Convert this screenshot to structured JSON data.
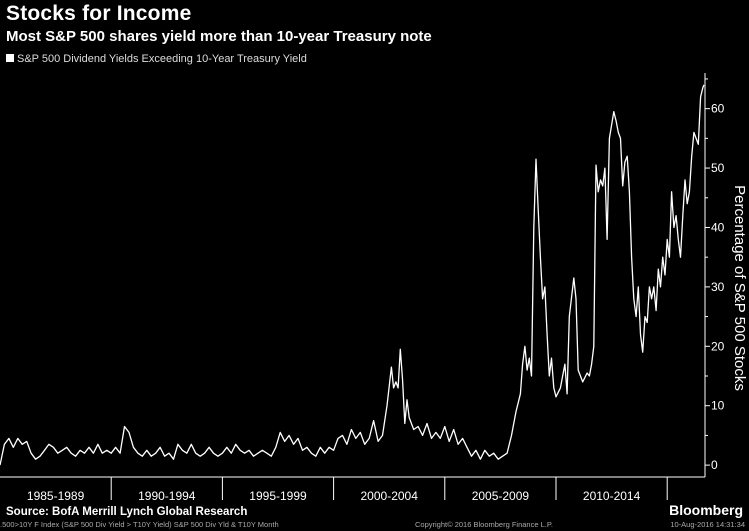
{
  "title": "Stocks for Income",
  "subtitle": "Most S&P 500 shares yield more than 10-year Treasury note",
  "legend_label": "S&P 500 Dividend Yields Exceeding 10-Year Treasury Yield",
  "source": "Source: BofA Merrill Lynch Global Research",
  "brand": "Bloomberg",
  "footer": {
    "left": ".500>10Y F Index (S&P 500 Div Yield > T10Y Yield) S&P 500 Div Yld & T10Y  Month",
    "mid": "Copyright© 2016 Bloomberg Finance L.P.",
    "right": "10-Aug-2016 14:31:34"
  },
  "colors": {
    "background": "#000000",
    "line": "#ffffff",
    "text": "#ffffff"
  },
  "chart_data": {
    "type": "line",
    "title": "Stocks for Income",
    "subtitle": "Most S&P 500 shares yield more than 10-year Treasury note",
    "xlabel": "",
    "ylabel": "Percentage of S&P 500 Stocks",
    "ylim": [
      -2,
      66
    ],
    "yticks": [
      0,
      10,
      20,
      30,
      40,
      50,
      60
    ],
    "xlim": [
      1985.0,
      2016.7
    ],
    "period_labels": [
      "1985-1989",
      "1990-1994",
      "1995-1999",
      "2000-2004",
      "2005-2009",
      "2010-2014"
    ],
    "legend_position": "top-left",
    "grid": false,
    "series": [
      {
        "name": "S&P 500 Dividend Yields Exceeding 10-Year Treasury Yield",
        "points": [
          [
            1985.0,
            0
          ],
          [
            1985.2,
            3.5
          ],
          [
            1985.4,
            4.5
          ],
          [
            1985.6,
            3
          ],
          [
            1985.8,
            4.5
          ],
          [
            1986.0,
            3.5
          ],
          [
            1986.2,
            4
          ],
          [
            1986.4,
            2
          ],
          [
            1986.6,
            1
          ],
          [
            1986.8,
            1.5
          ],
          [
            1987.0,
            2.5
          ],
          [
            1987.2,
            3.5
          ],
          [
            1987.4,
            3
          ],
          [
            1987.6,
            2
          ],
          [
            1987.8,
            2.5
          ],
          [
            1988.0,
            3
          ],
          [
            1988.2,
            2
          ],
          [
            1988.4,
            1.5
          ],
          [
            1988.6,
            2.5
          ],
          [
            1988.8,
            2
          ],
          [
            1989.0,
            3
          ],
          [
            1989.2,
            2
          ],
          [
            1989.4,
            3.5
          ],
          [
            1989.6,
            2
          ],
          [
            1989.8,
            2.5
          ],
          [
            1990.0,
            2
          ],
          [
            1990.2,
            3
          ],
          [
            1990.4,
            2
          ],
          [
            1990.6,
            6.5
          ],
          [
            1990.8,
            5.5
          ],
          [
            1991.0,
            3
          ],
          [
            1991.2,
            2
          ],
          [
            1991.4,
            1.5
          ],
          [
            1991.6,
            2.5
          ],
          [
            1991.8,
            1.5
          ],
          [
            1992.0,
            2
          ],
          [
            1992.2,
            3
          ],
          [
            1992.4,
            1.5
          ],
          [
            1992.6,
            2
          ],
          [
            1992.8,
            1
          ],
          [
            1993.0,
            3.5
          ],
          [
            1993.2,
            2.5
          ],
          [
            1993.4,
            2
          ],
          [
            1993.6,
            3.5
          ],
          [
            1993.8,
            2
          ],
          [
            1994.0,
            1.5
          ],
          [
            1994.2,
            2
          ],
          [
            1994.4,
            3
          ],
          [
            1994.6,
            2
          ],
          [
            1994.8,
            1.5
          ],
          [
            1995.0,
            2
          ],
          [
            1995.2,
            3
          ],
          [
            1995.4,
            2
          ],
          [
            1995.6,
            3.5
          ],
          [
            1995.8,
            2.5
          ],
          [
            1996.0,
            2
          ],
          [
            1996.2,
            2.5
          ],
          [
            1996.4,
            1.5
          ],
          [
            1996.6,
            2
          ],
          [
            1996.8,
            2.5
          ],
          [
            1997.0,
            2
          ],
          [
            1997.2,
            1.5
          ],
          [
            1997.4,
            3
          ],
          [
            1997.6,
            5.5
          ],
          [
            1997.8,
            4
          ],
          [
            1998.0,
            5
          ],
          [
            1998.2,
            3.5
          ],
          [
            1998.4,
            4.5
          ],
          [
            1998.6,
            2.5
          ],
          [
            1998.8,
            3
          ],
          [
            1999.0,
            2
          ],
          [
            1999.2,
            1.5
          ],
          [
            1999.4,
            3
          ],
          [
            1999.6,
            2
          ],
          [
            1999.8,
            3
          ],
          [
            2000.0,
            2.5
          ],
          [
            2000.2,
            4.5
          ],
          [
            2000.4,
            5
          ],
          [
            2000.6,
            3.5
          ],
          [
            2000.8,
            6
          ],
          [
            2001.0,
            4.5
          ],
          [
            2001.2,
            5.5
          ],
          [
            2001.4,
            3.5
          ],
          [
            2001.6,
            4.5
          ],
          [
            2001.8,
            7.5
          ],
          [
            2002.0,
            4
          ],
          [
            2002.2,
            5
          ],
          [
            2002.4,
            10
          ],
          [
            2002.6,
            16.5
          ],
          [
            2002.7,
            13
          ],
          [
            2002.8,
            14
          ],
          [
            2002.9,
            13
          ],
          [
            2003.0,
            19.5
          ],
          [
            2003.1,
            14.5
          ],
          [
            2003.2,
            7
          ],
          [
            2003.3,
            11
          ],
          [
            2003.4,
            8
          ],
          [
            2003.6,
            6
          ],
          [
            2003.8,
            6.5
          ],
          [
            2004.0,
            5
          ],
          [
            2004.2,
            7
          ],
          [
            2004.4,
            4.5
          ],
          [
            2004.6,
            5.5
          ],
          [
            2004.8,
            4.5
          ],
          [
            2005.0,
            6.5
          ],
          [
            2005.2,
            4
          ],
          [
            2005.4,
            6
          ],
          [
            2005.6,
            3.5
          ],
          [
            2005.8,
            4.5
          ],
          [
            2006.0,
            3
          ],
          [
            2006.2,
            1.5
          ],
          [
            2006.4,
            2.5
          ],
          [
            2006.6,
            1
          ],
          [
            2006.8,
            2.5
          ],
          [
            2007.0,
            1.5
          ],
          [
            2007.2,
            2
          ],
          [
            2007.4,
            1
          ],
          [
            2007.6,
            1.5
          ],
          [
            2007.8,
            2
          ],
          [
            2008.0,
            5
          ],
          [
            2008.2,
            9
          ],
          [
            2008.4,
            12
          ],
          [
            2008.5,
            17
          ],
          [
            2008.6,
            20
          ],
          [
            2008.7,
            16
          ],
          [
            2008.8,
            18
          ],
          [
            2008.9,
            15
          ],
          [
            2009.0,
            40
          ],
          [
            2009.1,
            51.5
          ],
          [
            2009.2,
            43
          ],
          [
            2009.3,
            35
          ],
          [
            2009.4,
            28
          ],
          [
            2009.5,
            30
          ],
          [
            2009.6,
            22
          ],
          [
            2009.7,
            15
          ],
          [
            2009.8,
            18
          ],
          [
            2009.9,
            13
          ],
          [
            2010.0,
            11.5
          ],
          [
            2010.2,
            13
          ],
          [
            2010.4,
            17
          ],
          [
            2010.5,
            12
          ],
          [
            2010.6,
            25
          ],
          [
            2010.8,
            31.5
          ],
          [
            2010.9,
            28
          ],
          [
            2011.0,
            16
          ],
          [
            2011.2,
            14
          ],
          [
            2011.4,
            15.5
          ],
          [
            2011.5,
            15
          ],
          [
            2011.6,
            17
          ],
          [
            2011.7,
            20
          ],
          [
            2011.8,
            50.5
          ],
          [
            2011.9,
            46
          ],
          [
            2012.0,
            48
          ],
          [
            2012.1,
            47
          ],
          [
            2012.2,
            50
          ],
          [
            2012.3,
            38
          ],
          [
            2012.4,
            55
          ],
          [
            2012.6,
            59.5
          ],
          [
            2012.7,
            58
          ],
          [
            2012.8,
            56
          ],
          [
            2012.9,
            55
          ],
          [
            2013.0,
            47
          ],
          [
            2013.1,
            51
          ],
          [
            2013.2,
            52
          ],
          [
            2013.3,
            46
          ],
          [
            2013.4,
            35
          ],
          [
            2013.5,
            28
          ],
          [
            2013.6,
            25
          ],
          [
            2013.7,
            30
          ],
          [
            2013.8,
            22
          ],
          [
            2013.9,
            19
          ],
          [
            2014.0,
            25
          ],
          [
            2014.1,
            24
          ],
          [
            2014.2,
            30
          ],
          [
            2014.3,
            28
          ],
          [
            2014.4,
            30
          ],
          [
            2014.5,
            26
          ],
          [
            2014.6,
            33
          ],
          [
            2014.7,
            30
          ],
          [
            2014.8,
            35
          ],
          [
            2014.9,
            32
          ],
          [
            2015.0,
            38
          ],
          [
            2015.1,
            35
          ],
          [
            2015.2,
            46
          ],
          [
            2015.3,
            40
          ],
          [
            2015.4,
            42
          ],
          [
            2015.5,
            38
          ],
          [
            2015.6,
            35
          ],
          [
            2015.7,
            42
          ],
          [
            2015.8,
            48
          ],
          [
            2015.9,
            44
          ],
          [
            2016.0,
            46
          ],
          [
            2016.1,
            52
          ],
          [
            2016.2,
            56
          ],
          [
            2016.3,
            55
          ],
          [
            2016.4,
            54
          ],
          [
            2016.5,
            62
          ],
          [
            2016.6,
            63.5
          ],
          [
            2016.65,
            64
          ]
        ]
      }
    ]
  }
}
